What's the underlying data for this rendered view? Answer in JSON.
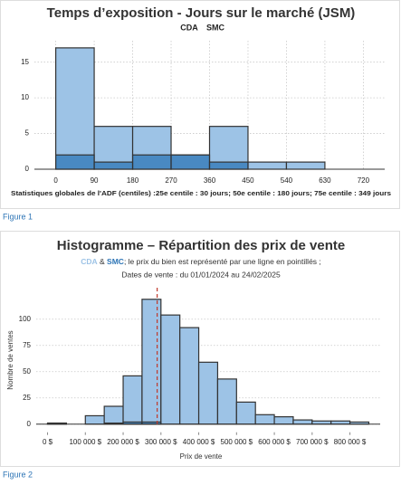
{
  "chart_data": [
    {
      "type": "histogram",
      "title": "Temps d’exposition - Jours sur le marché (JSM)",
      "bins": [
        0,
        90,
        180,
        270,
        360,
        450,
        540,
        630,
        720
      ],
      "series": [
        {
          "name": "CDA",
          "color": "#9dc3e6",
          "values": [
            17,
            6,
            6,
            2,
            6,
            1,
            1,
            0
          ]
        },
        {
          "name": "SMC",
          "color": "#2e75b6",
          "values": [
            2,
            1,
            2,
            2,
            1,
            0,
            0,
            0
          ]
        }
      ],
      "xlim": [
        -50,
        770
      ],
      "ylim": [
        0,
        18
      ],
      "xticks": [
        0,
        90,
        180,
        270,
        360,
        450,
        540,
        630,
        720
      ],
      "yticks": [
        0,
        5,
        10,
        15
      ],
      "grid": "both",
      "note": "Statistiques globales de l'ADF (centiles) :25e centile : 30 jours; 50e centile : 180 jours; 75e centile : 349 jours",
      "caption": "Figure 1"
    },
    {
      "type": "histogram",
      "title": "Histogramme – Répartition des prix de vente",
      "subtitle_connector": "&",
      "subtitle": "; le prix du bien est représenté par une ligne en pointillés ;",
      "subtitle2": "Dates de vente : du 01/01/2024 au 24/02/2025",
      "x_label": "Prix de vente",
      "y_label": "Nombre de ventes",
      "bins": [
        0,
        50000,
        100000,
        150000,
        200000,
        250000,
        300000,
        350000,
        400000,
        450000,
        500000,
        550000,
        600000,
        650000,
        700000,
        750000,
        800000,
        850000
      ],
      "series": [
        {
          "name": "CDA",
          "color": "#9dc3e6",
          "values": [
            1,
            0,
            8,
            17,
            46,
            119,
            104,
            92,
            59,
            43,
            21,
            9,
            7,
            4,
            3,
            3,
            2
          ]
        },
        {
          "name": "SMC",
          "color": "#2e75b6",
          "values": [
            1,
            0,
            0,
            1,
            2,
            2,
            0,
            0,
            0,
            0,
            0,
            0,
            0,
            0,
            0,
            0,
            0
          ]
        }
      ],
      "price_line": 290000,
      "price_line_color": "#c0392b",
      "xlim": [
        -30000,
        880000
      ],
      "ylim": [
        -8,
        130
      ],
      "xticks": [
        {
          "value": 0,
          "label": "0 $"
        },
        {
          "value": 100000,
          "label": "100 000 $"
        },
        {
          "value": 200000,
          "label": "200 000 $"
        },
        {
          "value": 300000,
          "label": "300 000 $"
        },
        {
          "value": 400000,
          "label": "400 000 $"
        },
        {
          "value": 500000,
          "label": "500 000 $"
        },
        {
          "value": 600000,
          "label": "600 000 $"
        },
        {
          "value": 700000,
          "label": "700 000 $"
        },
        {
          "value": 800000,
          "label": "800 000 $"
        }
      ],
      "yticks": [
        0,
        25,
        50,
        75,
        100
      ],
      "grid": "y",
      "caption": "Figure 2"
    }
  ]
}
